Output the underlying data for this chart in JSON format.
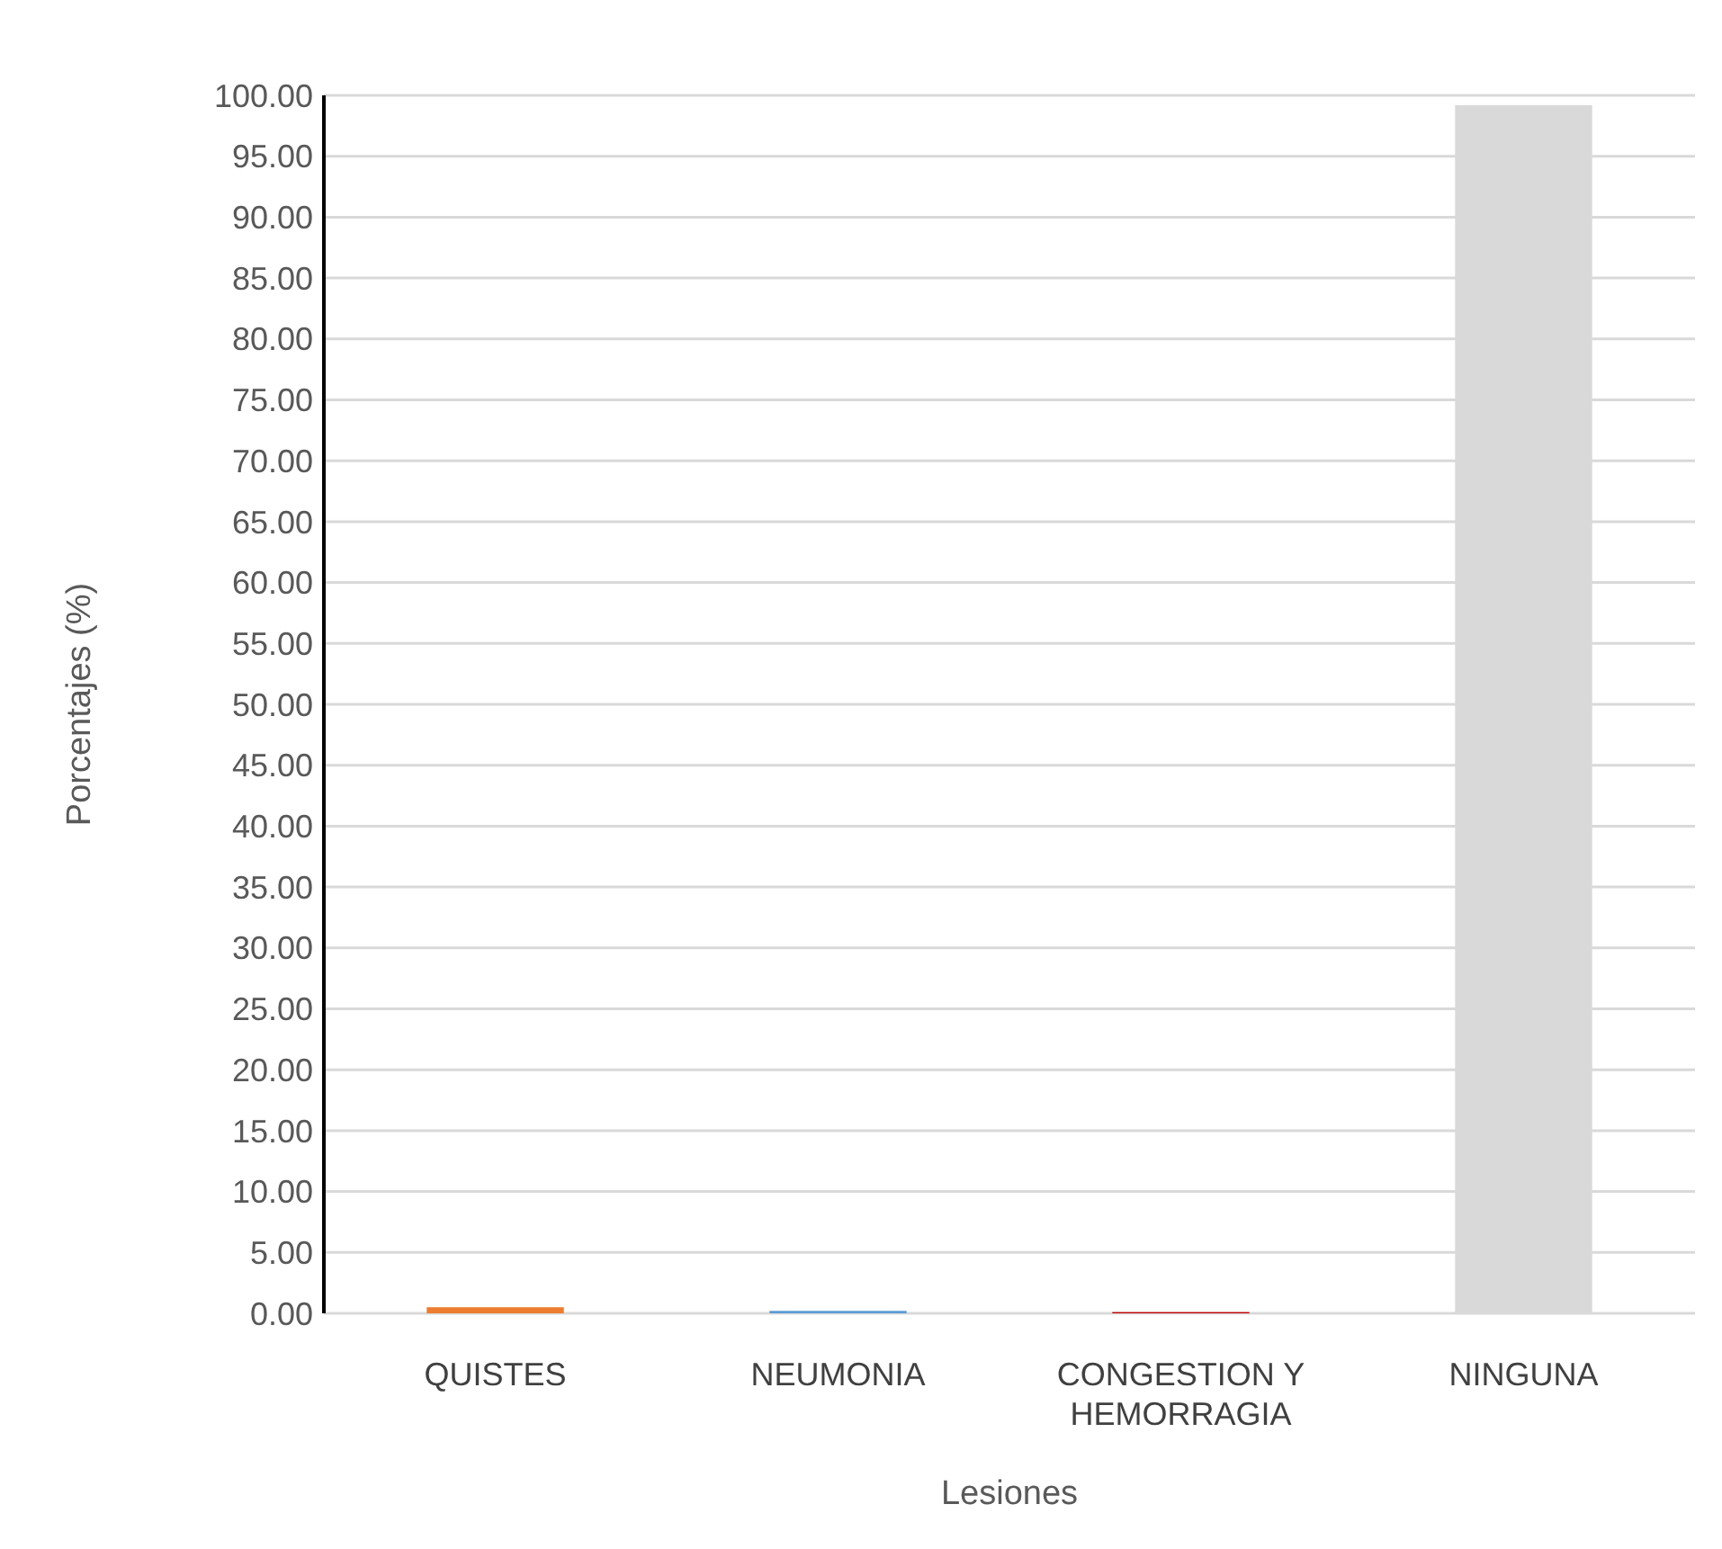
{
  "chart_data": {
    "type": "bar",
    "xlabel": "Lesiones",
    "ylabel": "Porcentajes (%)",
    "categories": [
      "QUISTES",
      "NEUMONIA",
      "CONGESTION Y HEMORRAGIA",
      "NINGUNA"
    ],
    "values": [
      0.5,
      0.2,
      0.1,
      99.2
    ],
    "colors": [
      "#ed7d31",
      "#5b9bd5",
      "#c00000",
      "#d9d9d9"
    ],
    "ylim": [
      0,
      100
    ],
    "yticks": [
      {
        "value": 0,
        "label": "0.00"
      },
      {
        "value": 5,
        "label": "5.00"
      },
      {
        "value": 10,
        "label": "10.00"
      },
      {
        "value": 15,
        "label": "15.00"
      },
      {
        "value": 20,
        "label": "20.00"
      },
      {
        "value": 25,
        "label": "25.00"
      },
      {
        "value": 30,
        "label": "30.00"
      },
      {
        "value": 35,
        "label": "35.00"
      },
      {
        "value": 40,
        "label": "40.00"
      },
      {
        "value": 45,
        "label": "45.00"
      },
      {
        "value": 50,
        "label": "50.00"
      },
      {
        "value": 55,
        "label": "55.00"
      },
      {
        "value": 60,
        "label": "60.00"
      },
      {
        "value": 65,
        "label": "65.00"
      },
      {
        "value": 70,
        "label": "70.00"
      },
      {
        "value": 75,
        "label": "75.00"
      },
      {
        "value": 80,
        "label": "80.00"
      },
      {
        "value": 85,
        "label": "85.00"
      },
      {
        "value": 90,
        "label": "90.00"
      },
      {
        "value": 95,
        "label": "95.00"
      },
      {
        "value": 100,
        "label": "100.00"
      }
    ],
    "grid": "y"
  }
}
